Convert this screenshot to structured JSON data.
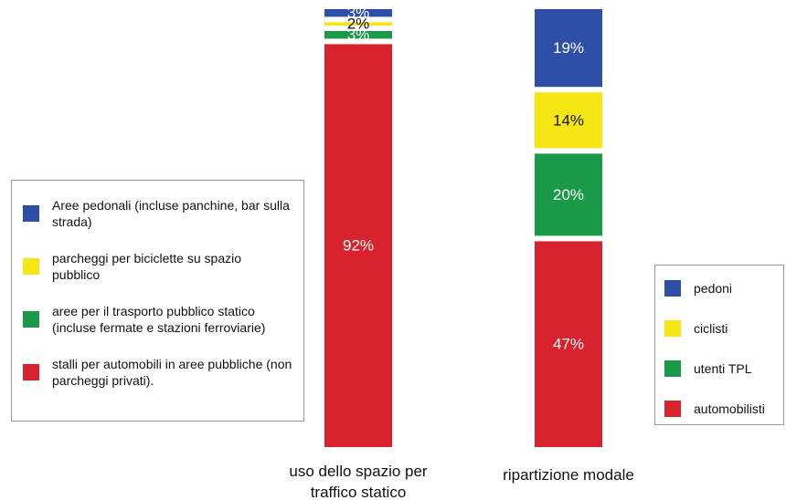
{
  "chart_data": [
    {
      "type": "bar",
      "stacked": true,
      "legend": "left",
      "ylim": [
        0,
        100
      ],
      "categories": [
        "uso dello spazio per traffico statico"
      ],
      "series": [
        {
          "name": "Aree pedonali (incluse panchine, bar sulla strada)",
          "color": "#2e4fa8",
          "values": [
            3
          ],
          "value_labels": [
            "3%"
          ]
        },
        {
          "name": "parcheggi per biciclette su spazio pubblico",
          "color": "#f5e614",
          "values": [
            2
          ],
          "value_labels": [
            "2%"
          ]
        },
        {
          "name": "aree per il trasporto pubblico statico (incluse fermate e stazioni ferroviarie)",
          "color": "#1a9a48",
          "values": [
            3
          ],
          "value_labels": [
            "3%"
          ]
        },
        {
          "name": "stalli per automobili in aree pubbliche (non parcheggi privati).",
          "color": "#d8232f",
          "values": [
            92
          ],
          "value_labels": [
            "92%"
          ]
        }
      ]
    },
    {
      "type": "bar",
      "stacked": true,
      "legend": "right",
      "ylim": [
        0,
        100
      ],
      "categories": [
        "ripartizione modale"
      ],
      "series": [
        {
          "name": "pedoni",
          "color": "#2e4fa8",
          "values": [
            19
          ],
          "value_labels": [
            "19%"
          ]
        },
        {
          "name": "ciclisti",
          "color": "#f5e614",
          "values": [
            14
          ],
          "value_labels": [
            "14%"
          ]
        },
        {
          "name": "utenti TPL",
          "color": "#1a9a48",
          "values": [
            20
          ],
          "value_labels": [
            "20%"
          ]
        },
        {
          "name": "automobilisti",
          "color": "#d8232f",
          "values": [
            47
          ],
          "value_labels": [
            "47%"
          ]
        }
      ]
    }
  ]
}
